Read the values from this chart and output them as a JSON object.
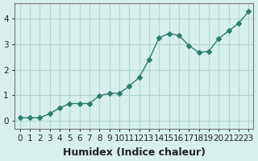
{
  "x": [
    0,
    1,
    2,
    3,
    4,
    5,
    6,
    7,
    8,
    9,
    10,
    11,
    12,
    13,
    14,
    15,
    16,
    17,
    18,
    19,
    20,
    21,
    22,
    23
  ],
  "y": [
    0.12,
    0.12,
    0.12,
    0.28,
    0.5,
    0.68,
    0.68,
    0.68,
    0.98,
    1.08,
    1.08,
    1.35,
    1.7,
    2.4,
    3.25,
    3.42,
    3.35,
    2.95,
    2.68,
    2.72,
    3.22,
    3.52,
    3.82,
    4.28
  ],
  "line_color": "#2d7d6e",
  "marker": "D",
  "marker_size": 3,
  "bg_color": "#d7f0ec",
  "grid_color": "#b0d8d0",
  "xlabel": "Humidex (Indice chaleur)",
  "xlabel_fontsize": 9,
  "tick_fontsize": 7.5,
  "ylim": [
    -0.3,
    4.6
  ],
  "xlim": [
    -0.5,
    23.5
  ],
  "yticks": [
    0,
    1,
    2,
    3,
    4
  ],
  "xticks": [
    0,
    1,
    2,
    3,
    4,
    5,
    6,
    7,
    8,
    9,
    10,
    11,
    12,
    13,
    14,
    15,
    16,
    17,
    18,
    19,
    20,
    21,
    22,
    23
  ]
}
